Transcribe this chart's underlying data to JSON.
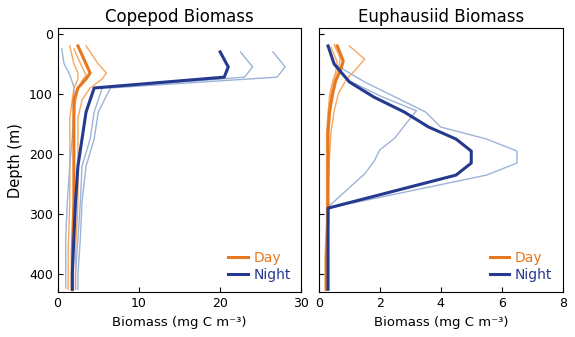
{
  "title_left": "Copepod Biomass",
  "title_right": "Euphausiid Biomass",
  "ylabel": "Depth (m)",
  "xlabel": "Biomass (mg C m⁻³)",
  "ylim": [
    430,
    -10
  ],
  "xlim_left": [
    0,
    30
  ],
  "xlim_right": [
    0,
    8
  ],
  "xticks_left": [
    0,
    10,
    20,
    30
  ],
  "xticks_right": [
    0,
    2,
    4,
    6,
    8
  ],
  "yticks": [
    0,
    100,
    200,
    300,
    400
  ],
  "color_day_thick": "#E87820",
  "color_day_thin": "#F5A860",
  "color_night_thick": "#253A8E",
  "color_night_thin": "#9DB3D8",
  "lw_thick": 2.2,
  "lw_thin": 1.0,
  "legend_day": "Day",
  "legend_night": "Night",
  "bg_color": "#FFFFFF",
  "cop_day_mean_x": [
    2.5,
    3.5,
    4.0,
    3.5,
    2.5,
    2.0,
    2.0,
    2.0,
    2.0,
    2.0,
    1.8,
    1.8
  ],
  "cop_day_mean_y": [
    20,
    50,
    65,
    75,
    90,
    110,
    140,
    170,
    220,
    280,
    360,
    425
  ],
  "cop_day_thin1_x": [
    3.5,
    5.0,
    6.0,
    5.5,
    4.0,
    3.0,
    2.5,
    2.5,
    2.5,
    2.5,
    2.2,
    2.2
  ],
  "cop_day_thin1_y": [
    20,
    50,
    65,
    75,
    90,
    110,
    140,
    170,
    220,
    280,
    360,
    425
  ],
  "cop_day_thin2_x": [
    1.5,
    2.0,
    2.5,
    2.5,
    2.0,
    1.8,
    1.5,
    1.5,
    1.5,
    1.5,
    1.3,
    1.3
  ],
  "cop_day_thin2_y": [
    20,
    50,
    65,
    75,
    90,
    110,
    140,
    170,
    220,
    280,
    360,
    425
  ],
  "cop_day_thin3_x": [
    2.0,
    3.0,
    3.5,
    3.0,
    2.5,
    2.2,
    2.0,
    2.0,
    2.0,
    2.0,
    1.8,
    1.8
  ],
  "cop_day_thin3_y": [
    25,
    55,
    68,
    78,
    93,
    113,
    143,
    173,
    225,
    283,
    363,
    428
  ],
  "cop_night_mean_x": [
    20.0,
    21.0,
    20.5,
    4.5,
    3.5,
    3.0,
    2.5,
    2.2,
    2.0,
    1.8,
    1.8
  ],
  "cop_night_mean_y": [
    30,
    55,
    72,
    90,
    130,
    175,
    220,
    280,
    340,
    400,
    425
  ],
  "cop_night_thin1_x": [
    22.5,
    24.0,
    23.0,
    5.5,
    4.5,
    4.0,
    3.0,
    2.8,
    2.5,
    2.2,
    2.2
  ],
  "cop_night_thin1_y": [
    30,
    55,
    72,
    90,
    130,
    175,
    220,
    280,
    340,
    400,
    425
  ],
  "cop_night_thin2_x": [
    26.5,
    28.0,
    27.0,
    6.5,
    5.0,
    4.5,
    3.5,
    3.0,
    2.8,
    2.5,
    2.5
  ],
  "cop_night_thin2_y": [
    30,
    55,
    72,
    90,
    130,
    175,
    220,
    280,
    340,
    400,
    425
  ],
  "cop_night_thin3_x": [
    0.5,
    0.8,
    1.5,
    2.0,
    2.0,
    1.8,
    1.5,
    1.2,
    1.0,
    1.0,
    1.0
  ],
  "cop_night_thin3_y": [
    25,
    50,
    68,
    88,
    128,
    173,
    218,
    278,
    338,
    398,
    423
  ],
  "euph_day_mean_x": [
    0.6,
    0.8,
    0.7,
    0.55,
    0.45,
    0.35,
    0.3,
    0.3,
    0.3,
    0.3,
    0.25,
    0.25
  ],
  "euph_day_mean_y": [
    20,
    45,
    62,
    78,
    100,
    130,
    165,
    205,
    260,
    310,
    370,
    425
  ],
  "euph_day_thin1_x": [
    1.0,
    1.5,
    1.2,
    0.9,
    0.65,
    0.5,
    0.4,
    0.35,
    0.3,
    0.3,
    0.25,
    0.25
  ],
  "euph_day_thin1_y": [
    20,
    42,
    60,
    76,
    98,
    128,
    163,
    203,
    258,
    308,
    368,
    423
  ],
  "euph_day_thin2_x": [
    0.4,
    0.6,
    0.55,
    0.45,
    0.35,
    0.3,
    0.25,
    0.25,
    0.25,
    0.25,
    0.2,
    0.2
  ],
  "euph_day_thin2_y": [
    22,
    47,
    64,
    80,
    102,
    132,
    167,
    207,
    262,
    312,
    372,
    427
  ],
  "euph_day_thin3_x": [
    0.5,
    0.7,
    0.65,
    0.5,
    0.4,
    0.32,
    0.27,
    0.27,
    0.27,
    0.27,
    0.22,
    0.22
  ],
  "euph_day_thin3_y": [
    18,
    40,
    58,
    74,
    96,
    126,
    161,
    201,
    256,
    306,
    366,
    421
  ],
  "euph_night_mean_x": [
    0.3,
    0.5,
    1.0,
    1.8,
    2.8,
    3.6,
    4.5,
    5.0,
    5.0,
    4.5,
    0.3,
    0.3
  ],
  "euph_night_mean_y": [
    20,
    50,
    80,
    105,
    130,
    155,
    175,
    195,
    215,
    235,
    290,
    425
  ],
  "euph_night_thin1_x": [
    0.3,
    0.5,
    1.5,
    2.5,
    3.5,
    4.0,
    5.5,
    6.5,
    6.5,
    5.5,
    0.3,
    0.3
  ],
  "euph_night_thin1_y": [
    20,
    50,
    80,
    105,
    130,
    155,
    175,
    195,
    215,
    235,
    290,
    425
  ],
  "euph_night_thin2_x": [
    0.3,
    0.5,
    1.0,
    2.0,
    3.2,
    2.8,
    2.5,
    2.0,
    1.8,
    1.5,
    0.3,
    0.3
  ],
  "euph_night_thin2_y": [
    20,
    50,
    78,
    103,
    128,
    153,
    173,
    193,
    213,
    233,
    288,
    423
  ]
}
